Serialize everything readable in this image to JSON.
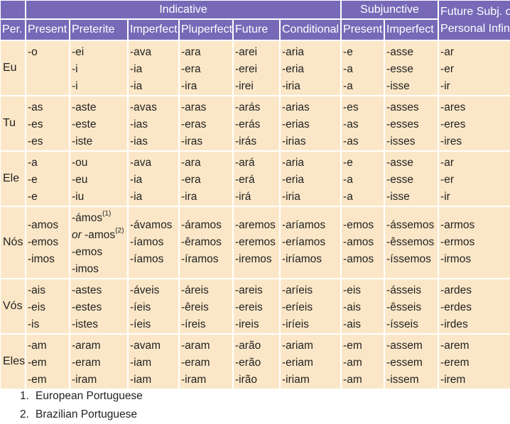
{
  "headers": {
    "indicative": "Indicative",
    "subjunctive": "Subjunctive",
    "future_subj": [
      "Future Subj. or",
      "Personal Infin."
    ],
    "columns": [
      "Per.",
      "Present",
      "Preterite",
      "Imperfect",
      "Pluperfect",
      "Future",
      "Conditional",
      "Present",
      "Imperfect"
    ]
  },
  "rows": [
    {
      "person": "Eu",
      "cells": [
        [
          "-o"
        ],
        [
          "-ei",
          "-i",
          "-i"
        ],
        [
          "-ava",
          "-ia",
          "-ia"
        ],
        [
          "-ara",
          "-era",
          "-ira"
        ],
        [
          "-arei",
          "-erei",
          "-irei"
        ],
        [
          "-aria",
          "-eria",
          "-iria"
        ],
        [
          "-e",
          "-a",
          "-a"
        ],
        [
          "-asse",
          "-esse",
          "-isse"
        ],
        [
          "-ar",
          "-er",
          "-ir"
        ]
      ]
    },
    {
      "person": "Tu",
      "cells": [
        [
          "-as",
          "-es",
          "-es"
        ],
        [
          "-aste",
          "-este",
          "-iste"
        ],
        [
          "-avas",
          "-ias",
          "-ias"
        ],
        [
          "-aras",
          "-eras",
          "-iras"
        ],
        [
          "-arás",
          "-erás",
          "-irás"
        ],
        [
          "-arias",
          "-erias",
          "-irias"
        ],
        [
          "-es",
          "-as",
          "-as"
        ],
        [
          "-asses",
          "-esses",
          "-isses"
        ],
        [
          "-ares",
          "-eres",
          "-ires"
        ]
      ]
    },
    {
      "person": "Ele",
      "cells": [
        [
          "-a",
          "-e",
          "-e"
        ],
        [
          "-ou",
          "-eu",
          "-iu"
        ],
        [
          "-ava",
          "-ia",
          "-ia"
        ],
        [
          "-ara",
          "-era",
          "-ira"
        ],
        [
          "-ará",
          "-erá",
          "-irá"
        ],
        [
          "-aria",
          "-eria",
          "-iria"
        ],
        [
          "-e",
          "-a",
          "-a"
        ],
        [
          "-asse",
          "-esse",
          "-isse"
        ],
        [
          "-ar",
          "-er",
          "-ir"
        ]
      ]
    },
    {
      "person": "Nós",
      "cells": [
        [
          "-amos",
          "-emos",
          "-imos"
        ],
        [
          "-ámos",
          "-amos",
          "-emos",
          "-imos"
        ],
        [
          "-ávamos",
          "-íamos",
          "-íamos"
        ],
        [
          "-áramos",
          "-êramos",
          "-íramos"
        ],
        [
          "-aremos",
          "-eremos",
          "-iremos"
        ],
        [
          "-aríamos",
          "-eríamos",
          "-iríamos"
        ],
        [
          "-emos",
          "-amos",
          "-amos"
        ],
        [
          "-ássemos",
          "-êssemos",
          "-íssemos"
        ],
        [
          "-armos",
          "-ermos",
          "-irmos"
        ]
      ],
      "preterite_marks": {
        "first": "(1)",
        "or": "or",
        "second": "(2)"
      }
    },
    {
      "person": "Vós",
      "cells": [
        [
          "-ais",
          "-eis",
          "-is"
        ],
        [
          "-astes",
          "-estes",
          "-istes"
        ],
        [
          "-áveis",
          "-íeis",
          "-íeis"
        ],
        [
          "-áreis",
          "-êreis",
          "-íreis"
        ],
        [
          "-areis",
          "-ereis",
          "-ireis"
        ],
        [
          "-aríeis",
          "-eríeis",
          "-iríeis"
        ],
        [
          "-eis",
          "-ais",
          "-ais"
        ],
        [
          "-ásseis",
          "-êsseis",
          "-ísseis"
        ],
        [
          "-ardes",
          "-erdes",
          "-irdes"
        ]
      ]
    },
    {
      "person": "Eles",
      "cells": [
        [
          "-am",
          "-em",
          "-em"
        ],
        [
          "-aram",
          "-eram",
          "-iram"
        ],
        [
          "-avam",
          "-iam",
          "-iam"
        ],
        [
          "-aram",
          "-eram",
          "-iram"
        ],
        [
          "-arão",
          "-erão",
          "-irão"
        ],
        [
          "-ariam",
          "-eriam",
          "-iriam"
        ],
        [
          "-em",
          "-am",
          "-am"
        ],
        [
          "-assem",
          "-essem",
          "-issem"
        ],
        [
          "-arem",
          "-erem",
          "-irem"
        ]
      ]
    }
  ],
  "notes": [
    {
      "num": "1.",
      "text": "European Portuguese"
    },
    {
      "num": "2.",
      "text": "Brazilian Portuguese"
    }
  ],
  "colors": {
    "header_bg": "#7769b7",
    "cell_bg": "#fbe7c7"
  }
}
